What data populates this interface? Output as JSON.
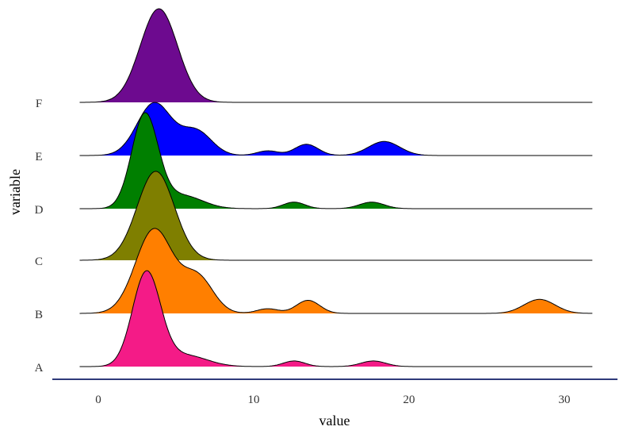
{
  "chart_data": {
    "type": "ridgeline",
    "title": "",
    "xlabel": "value",
    "ylabel": "variable",
    "xlim": [
      -1.2,
      31.8
    ],
    "xticks": [
      0,
      10,
      20,
      30
    ],
    "grid": false,
    "legend": "none",
    "series": [
      {
        "name": "A",
        "color": "#f41b87",
        "peaks": [
          {
            "x": 3.1,
            "height": 1.0,
            "sd": 0.9
          },
          {
            "x": 5.6,
            "height": 0.12,
            "sd": 1.4
          },
          {
            "x": 12.6,
            "height": 0.06,
            "sd": 0.7
          },
          {
            "x": 17.7,
            "height": 0.06,
            "sd": 0.8
          }
        ]
      },
      {
        "name": "B",
        "color": "#ff7f00",
        "peaks": [
          {
            "x": 3.6,
            "height": 0.9,
            "sd": 1.2
          },
          {
            "x": 6.4,
            "height": 0.38,
            "sd": 1.0
          },
          {
            "x": 10.9,
            "height": 0.05,
            "sd": 0.7
          },
          {
            "x": 13.5,
            "height": 0.14,
            "sd": 0.75
          },
          {
            "x": 28.4,
            "height": 0.15,
            "sd": 1.0
          }
        ]
      },
      {
        "name": "C",
        "color": "#7f7f00",
        "peaks": [
          {
            "x": 3.7,
            "height": 0.95,
            "sd": 1.2
          }
        ]
      },
      {
        "name": "D",
        "color": "#007f00",
        "peaks": [
          {
            "x": 3.0,
            "height": 1.0,
            "sd": 0.85
          },
          {
            "x": 5.4,
            "height": 0.14,
            "sd": 1.3
          },
          {
            "x": 12.6,
            "height": 0.07,
            "sd": 0.7
          },
          {
            "x": 17.6,
            "height": 0.07,
            "sd": 0.8
          }
        ]
      },
      {
        "name": "E",
        "color": "#0000ff",
        "peaks": [
          {
            "x": 3.6,
            "height": 0.56,
            "sd": 1.1
          },
          {
            "x": 6.3,
            "height": 0.26,
            "sd": 1.0
          },
          {
            "x": 10.9,
            "height": 0.05,
            "sd": 0.7
          },
          {
            "x": 13.4,
            "height": 0.12,
            "sd": 0.75
          },
          {
            "x": 18.4,
            "height": 0.15,
            "sd": 1.0
          }
        ]
      },
      {
        "name": "F",
        "color": "#6d0a8f",
        "peaks": [
          {
            "x": 3.9,
            "height": 1.0,
            "sd": 1.2
          }
        ]
      }
    ]
  }
}
